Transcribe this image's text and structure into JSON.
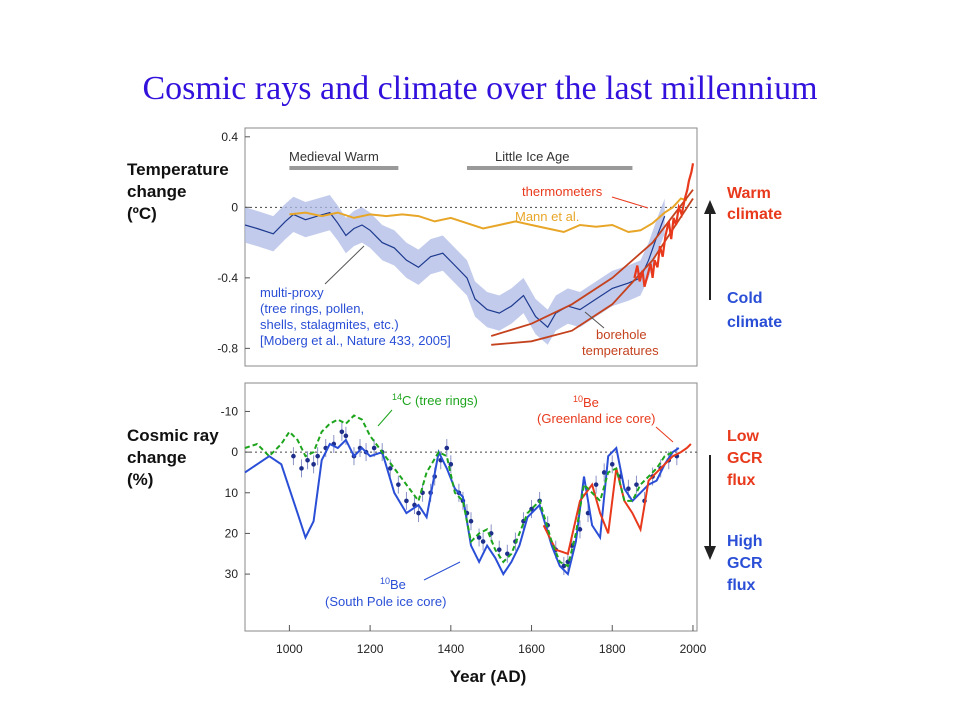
{
  "title": "Cosmic rays and climate over the last millennium",
  "colors": {
    "blue": "#2a4fd6",
    "red": "#e8391c",
    "green": "#1ea51e",
    "orange": "#e8a628",
    "darkred": "#c4421e",
    "band": "#aeb9e6",
    "grey": "#999999"
  },
  "chart_data": [
    {
      "type": "line",
      "ylabel": [
        "Temperature",
        "change",
        "(ºC)"
      ],
      "ylim": [
        -0.9,
        0.45
      ],
      "xlim": [
        890,
        2010
      ],
      "yticks": [
        {
          "v": 0.4,
          "label": "0.4"
        },
        {
          "v": 0.0,
          "label": "0"
        },
        {
          "v": -0.4,
          "label": "-0.4"
        },
        {
          "v": -0.8,
          "label": "-0.8"
        }
      ],
      "periods": [
        {
          "label": "Medieval Warm",
          "x0": 1000,
          "x1": 1270
        },
        {
          "label": "Little Ice Age",
          "x0": 1440,
          "x1": 1850
        }
      ],
      "annotations": {
        "thermometers": "thermometers",
        "mann": "Mann et al.",
        "proxy": [
          "multi-proxy",
          "(tree rings, pollen,",
          "shells, stalagmites, etc.)",
          "[Moberg et al., Nature 433, 2005]"
        ],
        "borehole": [
          "borehole",
          "temperatures"
        ]
      },
      "right_labels": {
        "warm": [
          "Warm",
          "climate"
        ],
        "cold": [
          "Cold",
          "climate"
        ]
      },
      "series": [
        {
          "id": "multi-proxy",
          "x": [
            890,
            920,
            960,
            990,
            1010,
            1040,
            1070,
            1100,
            1120,
            1140,
            1160,
            1180,
            1200,
            1230,
            1260,
            1290,
            1320,
            1350,
            1380,
            1410,
            1440,
            1460,
            1490,
            1520,
            1550,
            1580,
            1610,
            1640,
            1660,
            1690,
            1720,
            1760,
            1800,
            1840,
            1870,
            1890,
            1910,
            1930
          ],
          "values": [
            -0.1,
            -0.12,
            -0.15,
            -0.08,
            -0.04,
            -0.07,
            -0.05,
            -0.03,
            -0.09,
            -0.16,
            -0.12,
            -0.1,
            -0.13,
            -0.2,
            -0.23,
            -0.3,
            -0.34,
            -0.28,
            -0.26,
            -0.33,
            -0.4,
            -0.52,
            -0.58,
            -0.6,
            -0.56,
            -0.5,
            -0.62,
            -0.68,
            -0.6,
            -0.56,
            -0.58,
            -0.52,
            -0.46,
            -0.43,
            -0.4,
            -0.3,
            -0.17,
            -0.05
          ],
          "band": 0.1
        },
        {
          "id": "mann",
          "x": [
            1000,
            1040,
            1080,
            1120,
            1160,
            1200,
            1240,
            1280,
            1320,
            1360,
            1400,
            1440,
            1480,
            1520,
            1560,
            1600,
            1640,
            1680,
            1720,
            1760,
            1800,
            1840,
            1870,
            1900,
            1930,
            1950,
            1970,
            1985
          ],
          "values": [
            -0.04,
            -0.03,
            -0.05,
            -0.03,
            -0.06,
            -0.04,
            -0.05,
            -0.04,
            -0.05,
            -0.08,
            -0.06,
            -0.09,
            -0.12,
            -0.1,
            -0.08,
            -0.1,
            -0.12,
            -0.14,
            -0.1,
            -0.11,
            -0.1,
            -0.14,
            -0.13,
            -0.09,
            -0.03,
            0.0,
            0.05,
            0.04
          ]
        },
        {
          "id": "borehole-upper",
          "x": [
            1500,
            1600,
            1700,
            1800,
            1900,
            2000
          ],
          "values": [
            -0.73,
            -0.66,
            -0.55,
            -0.4,
            -0.2,
            0.1
          ]
        },
        {
          "id": "borehole-lower",
          "x": [
            1500,
            1600,
            1700,
            1800,
            1900,
            2000
          ],
          "values": [
            -0.78,
            -0.76,
            -0.7,
            -0.55,
            -0.3,
            0.05
          ]
        },
        {
          "id": "thermometers",
          "x": [
            1855,
            1862,
            1868,
            1875,
            1880,
            1888,
            1895,
            1900,
            1905,
            1912,
            1918,
            1925,
            1932,
            1940,
            1946,
            1952,
            1958,
            1965,
            1972,
            1980,
            1986,
            1990,
            1996,
            2000
          ],
          "values": [
            -0.4,
            -0.33,
            -0.42,
            -0.36,
            -0.45,
            -0.38,
            -0.32,
            -0.4,
            -0.3,
            -0.34,
            -0.22,
            -0.28,
            -0.16,
            -0.08,
            -0.18,
            -0.06,
            -0.1,
            0.0,
            -0.04,
            0.05,
            0.1,
            0.15,
            0.2,
            0.25
          ]
        }
      ]
    },
    {
      "type": "line",
      "ylabel": [
        "Cosmic ray",
        "change",
        "(%)"
      ],
      "ylim": [
        -17,
        44
      ],
      "xlabel": "Year (AD)",
      "xticks": [
        1000,
        1200,
        1400,
        1600,
        1800,
        2000
      ],
      "yticks": [
        {
          "v": -10,
          "label": "-10"
        },
        {
          "v": 0,
          "label": "0"
        },
        {
          "v": 10,
          "label": "10"
        },
        {
          "v": 20,
          "label": "20"
        },
        {
          "v": 30,
          "label": "30"
        }
      ],
      "annotations": {
        "c14": [
          "14",
          "C (tree rings)"
        ],
        "be_greenland": [
          "10",
          "Be",
          "(Greenland ice core)"
        ],
        "be_south": [
          "10",
          "Be",
          "(South Pole ice core)"
        ]
      },
      "right_labels": {
        "low": [
          "Low",
          "GCR",
          "flux"
        ],
        "high": [
          "High",
          "GCR",
          "flux"
        ]
      },
      "series": [
        {
          "id": "be-south-pole",
          "x": [
            890,
            920,
            950,
            980,
            1000,
            1020,
            1040,
            1060,
            1080,
            1100,
            1120,
            1140,
            1160,
            1180,
            1200,
            1230,
            1260,
            1290,
            1320,
            1340,
            1370,
            1390,
            1410,
            1430,
            1450,
            1470,
            1490,
            1510,
            1530,
            1550,
            1570,
            1590,
            1620,
            1650,
            1670,
            1690,
            1710,
            1730,
            1750,
            1770,
            1790,
            1810,
            1830,
            1850,
            1870,
            1890,
            1910,
            1930,
            1950,
            1965
          ],
          "values": [
            5,
            3,
            1,
            3,
            9,
            15,
            21,
            17,
            2,
            -2,
            -1,
            -3,
            1,
            -1,
            1,
            0,
            10,
            15,
            13,
            16,
            0,
            4,
            9,
            11,
            23,
            27,
            23,
            26,
            30,
            27,
            23,
            16,
            13,
            23,
            28,
            30,
            22,
            6,
            18,
            21,
            1,
            -1,
            9,
            12,
            10,
            8,
            7,
            3,
            0,
            -1
          ]
        },
        {
          "id": "c14-tree-rings",
          "x": [
            890,
            920,
            950,
            980,
            1000,
            1020,
            1040,
            1060,
            1080,
            1100,
            1120,
            1140,
            1160,
            1180,
            1200,
            1230,
            1260,
            1290,
            1320,
            1340,
            1370,
            1390,
            1410,
            1430,
            1450,
            1470,
            1490,
            1510,
            1530,
            1550,
            1570,
            1590,
            1620,
            1650,
            1670,
            1690,
            1710,
            1730,
            1750,
            1770,
            1790,
            1810,
            1830,
            1850,
            1870,
            1890,
            1910,
            1930,
            1950
          ],
          "values": [
            -1,
            -2,
            1,
            -2,
            -5,
            -3,
            1,
            0,
            -5,
            -7,
            -8,
            -7,
            -9,
            -8,
            -4,
            0,
            4,
            8,
            12,
            5,
            0,
            1,
            10,
            12,
            22,
            20,
            19,
            24,
            27,
            25,
            20,
            15,
            12,
            22,
            27,
            28,
            20,
            8,
            10,
            12,
            5,
            4,
            12,
            12,
            8,
            6,
            4,
            1,
            0
          ]
        },
        {
          "id": "be-greenland",
          "x": [
            1630,
            1660,
            1690,
            1720,
            1750,
            1770,
            1790,
            1810,
            1830,
            1850,
            1870,
            1890,
            1910,
            1930,
            1950,
            1970,
            1985,
            1995
          ],
          "values": [
            18,
            24,
            25,
            12,
            8,
            15,
            20,
            4,
            12,
            15,
            19,
            7,
            5,
            3,
            1,
            0,
            -1,
            -2
          ]
        },
        {
          "id": "be-points",
          "x": [
            1010,
            1030,
            1045,
            1060,
            1070,
            1090,
            1110,
            1130,
            1140,
            1160,
            1175,
            1190,
            1210,
            1230,
            1250,
            1270,
            1290,
            1310,
            1320,
            1330,
            1350,
            1360,
            1375,
            1390,
            1400,
            1420,
            1430,
            1440,
            1450,
            1470,
            1480,
            1500,
            1520,
            1540,
            1560,
            1580,
            1600,
            1620,
            1640,
            1660,
            1680,
            1690,
            1700,
            1720,
            1740,
            1760,
            1780,
            1800,
            1820,
            1840,
            1860,
            1880,
            1900,
            1920,
            1940,
            1960
          ],
          "values": [
            1,
            4,
            2,
            3,
            1,
            -1,
            -2,
            -5,
            -4,
            1,
            -1,
            0,
            -1,
            0,
            4,
            8,
            12,
            13,
            15,
            10,
            10,
            6,
            2,
            -1,
            3,
            10,
            12,
            15,
            17,
            21,
            22,
            20,
            24,
            25,
            22,
            17,
            14,
            12,
            18,
            24,
            28,
            27,
            23,
            19,
            15,
            8,
            5,
            3,
            6,
            9,
            8,
            12,
            6,
            4,
            2,
            1
          ]
        }
      ]
    }
  ]
}
